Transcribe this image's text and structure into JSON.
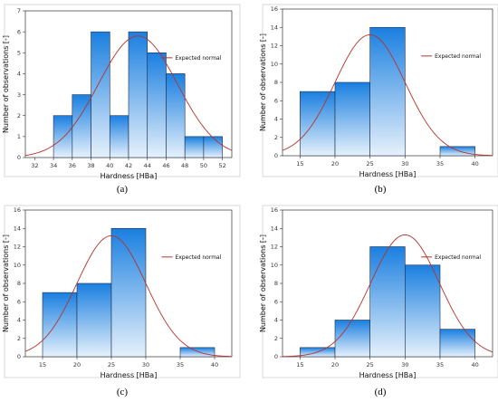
{
  "chart_data": [
    {
      "type": "histogram",
      "panel_label": "(a)",
      "xlabel": "Hardness [HBa]",
      "ylabel": "Number of observations [-]",
      "legend": "Expected normal",
      "xticks": [
        32,
        34,
        36,
        38,
        40,
        42,
        44,
        46,
        48,
        50,
        52
      ],
      "yticks": [
        0,
        1,
        2,
        3,
        4,
        5,
        6,
        7
      ],
      "xlim": [
        31,
        53
      ],
      "ylim": [
        0,
        7
      ],
      "bins": [
        {
          "x0": 34,
          "x1": 36,
          "count": 2
        },
        {
          "x0": 36,
          "x1": 38,
          "count": 3
        },
        {
          "x0": 38,
          "x1": 40,
          "count": 6
        },
        {
          "x0": 40,
          "x1": 42,
          "count": 2
        },
        {
          "x0": 42,
          "x1": 44,
          "count": 6
        },
        {
          "x0": 44,
          "x1": 46,
          "count": 5
        },
        {
          "x0": 46,
          "x1": 48,
          "count": 4
        },
        {
          "x0": 48,
          "x1": 50,
          "count": 1
        },
        {
          "x0": 50,
          "x1": 52,
          "count": 1
        }
      ],
      "normal": {
        "mean": 43.0,
        "sd": 4.2,
        "peak": 5.8
      },
      "grid": false,
      "legend_position": "top-right",
      "colors": {
        "bar_top": "#1a7fe0",
        "bar_bottom": "#e6f1fb",
        "curve": "#b5332b"
      }
    },
    {
      "type": "histogram",
      "panel_label": "(b)",
      "xlabel": "Hardness [HBa]",
      "ylabel": "Number of observations [-]",
      "legend": "Expected normal",
      "xticks": [
        15,
        20,
        25,
        30,
        35,
        40
      ],
      "yticks": [
        0,
        2,
        4,
        6,
        8,
        10,
        12,
        14,
        16
      ],
      "xlim": [
        12.5,
        42.5
      ],
      "ylim": [
        0,
        16
      ],
      "bins": [
        {
          "x0": 15,
          "x1": 20,
          "count": 7
        },
        {
          "x0": 20,
          "x1": 25,
          "count": 8
        },
        {
          "x0": 25,
          "x1": 30,
          "count": 14
        },
        {
          "x0": 30,
          "x1": 35,
          "count": 0
        },
        {
          "x0": 35,
          "x1": 40,
          "count": 1
        }
      ],
      "normal": {
        "mean": 25.0,
        "sd": 5.0,
        "peak": 13.2
      },
      "grid": false,
      "legend_position": "top-right",
      "colors": {
        "bar_top": "#1a7fe0",
        "bar_bottom": "#e6f1fb",
        "curve": "#b5332b"
      }
    },
    {
      "type": "histogram",
      "panel_label": "(c)",
      "xlabel": "Hardness [HBa]",
      "ylabel": "Number of observations [-]",
      "legend": "Expected normal",
      "xticks": [
        15,
        20,
        25,
        30,
        35,
        40
      ],
      "yticks": [
        0,
        2,
        4,
        6,
        8,
        10,
        12,
        14,
        16
      ],
      "xlim": [
        12.5,
        42.5
      ],
      "ylim": [
        0,
        16
      ],
      "bins": [
        {
          "x0": 15,
          "x1": 20,
          "count": 7
        },
        {
          "x0": 20,
          "x1": 25,
          "count": 8
        },
        {
          "x0": 25,
          "x1": 30,
          "count": 14
        },
        {
          "x0": 30,
          "x1": 35,
          "count": 0
        },
        {
          "x0": 35,
          "x1": 40,
          "count": 1
        }
      ],
      "normal": {
        "mean": 25.0,
        "sd": 5.0,
        "peak": 13.2
      },
      "grid": false,
      "legend_position": "top-right",
      "colors": {
        "bar_top": "#1a7fe0",
        "bar_bottom": "#e6f1fb",
        "curve": "#b5332b"
      }
    },
    {
      "type": "histogram",
      "panel_label": "(d)",
      "xlabel": "Hardness [HBa]",
      "ylabel": "Number of observations [-]",
      "legend": "Expected normal",
      "xticks": [
        15,
        20,
        25,
        30,
        35,
        40
      ],
      "yticks": [
        0,
        2,
        4,
        6,
        8,
        10,
        12,
        14,
        16
      ],
      "xlim": [
        12.5,
        42.5
      ],
      "ylim": [
        0,
        16
      ],
      "bins": [
        {
          "x0": 15,
          "x1": 20,
          "count": 1
        },
        {
          "x0": 20,
          "x1": 25,
          "count": 4
        },
        {
          "x0": 25,
          "x1": 30,
          "count": 12
        },
        {
          "x0": 30,
          "x1": 35,
          "count": 10
        },
        {
          "x0": 35,
          "x1": 40,
          "count": 3
        }
      ],
      "normal": {
        "mean": 30.0,
        "sd": 4.9,
        "peak": 13.3
      },
      "grid": false,
      "legend_position": "top-right",
      "colors": {
        "bar_top": "#1a7fe0",
        "bar_bottom": "#e6f1fb",
        "curve": "#b5332b"
      }
    }
  ]
}
